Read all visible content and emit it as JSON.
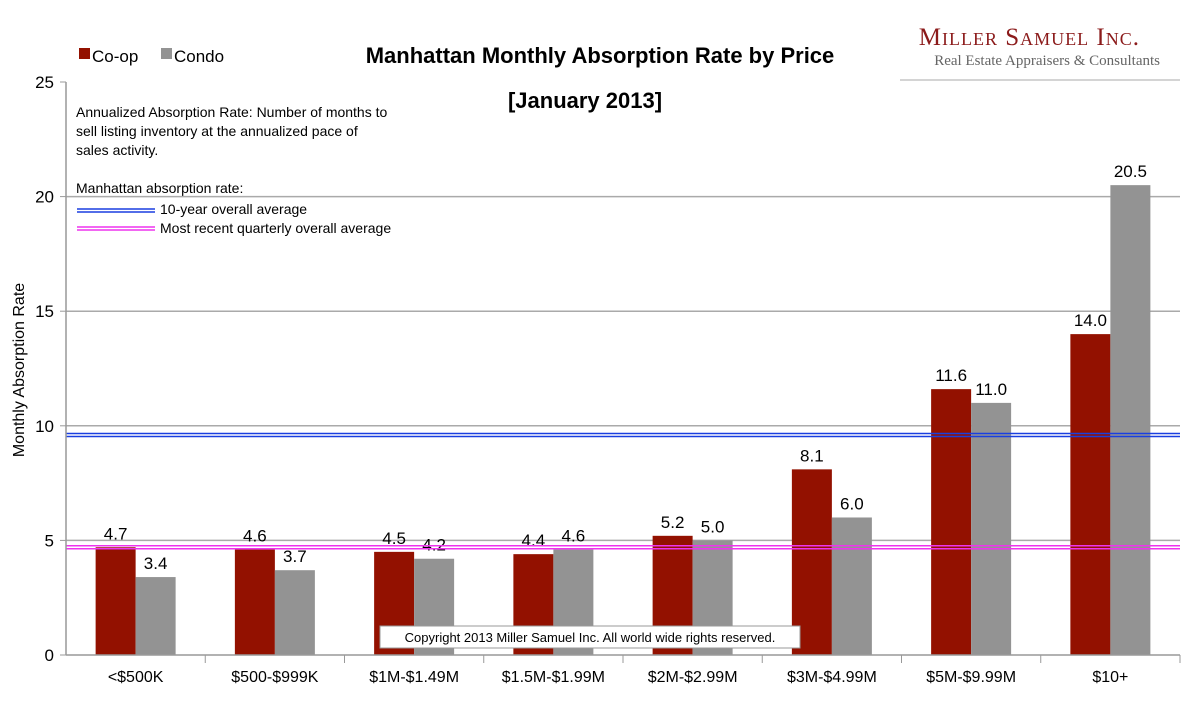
{
  "logo": {
    "name": "Miller Samuel Inc.",
    "tagline": "Real Estate Appraisers & Consultants"
  },
  "chart_data": {
    "type": "bar",
    "title": "Manhattan Monthly Absorption Rate by Price",
    "subtitle": "[January 2013]",
    "ylabel": "Monthly Absorption Rate",
    "xlabel": "",
    "ylim": [
      0,
      25
    ],
    "yticks": [
      0,
      5,
      10,
      15,
      20,
      25
    ],
    "grid": true,
    "legend_placement": "top-left",
    "categories": [
      "<$500K",
      "$500-$999K",
      "$1M-$1.49M",
      "$1.5M-$1.99M",
      "$2M-$2.99M",
      "$3M-$4.99M",
      "$5M-$9.99M",
      "$10+"
    ],
    "series": [
      {
        "name": "Co-op",
        "color": "#931100",
        "values": [
          4.7,
          4.6,
          4.5,
          4.4,
          5.2,
          8.1,
          11.6,
          14.0
        ],
        "labels": [
          "4.7",
          "4.6",
          "4.5",
          "4.4",
          "5.2",
          "8.1",
          "11.6",
          "14.0"
        ]
      },
      {
        "name": "Condo",
        "color": "#939393",
        "values": [
          3.4,
          3.7,
          4.2,
          4.6,
          5.0,
          6.0,
          11.0,
          20.5
        ],
        "labels": [
          "3.4",
          "3.7",
          "4.2",
          "4.6",
          "5.0",
          "6.0",
          "11.0",
          "20.5"
        ]
      }
    ],
    "reference_lines": [
      {
        "label": "10-year overall average",
        "value": 9.6,
        "color": "#1a3fe0"
      },
      {
        "label": "Most recent quarterly overall average",
        "value": 4.7,
        "color": "#ee33ee"
      }
    ],
    "annotation": [
      "Annualized Absorption Rate: Number of months to",
      "sell listing inventory at the annualized pace of",
      "sales activity."
    ],
    "reference_heading": "Manhattan absorption rate:",
    "copyright": "Copyright 2013 Miller Samuel Inc.  All world wide rights reserved."
  }
}
